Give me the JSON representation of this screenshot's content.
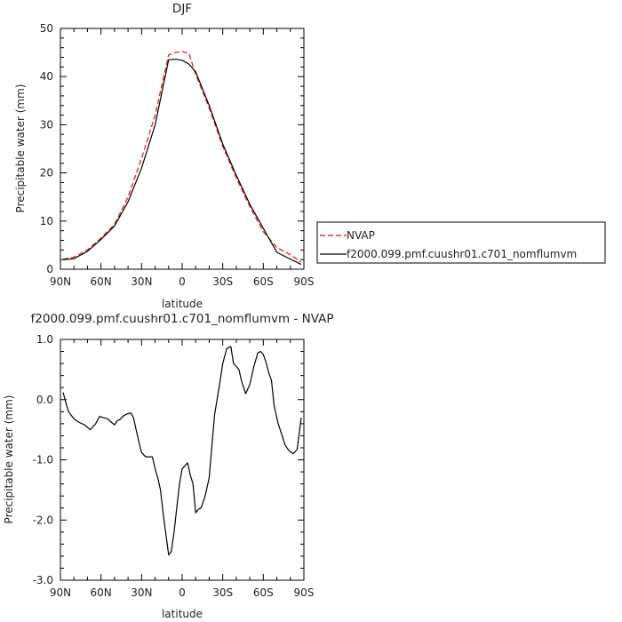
{
  "chart_data": [
    {
      "type": "line",
      "title": "DJF",
      "xlabel": "latitude",
      "ylabel": "Precipitable water (mm)",
      "ylim": [
        0,
        50
      ],
      "yticks": [
        0,
        10,
        20,
        30,
        40,
        50
      ],
      "xlim": [
        90,
        -90
      ],
      "xticks": [
        {
          "value": 90,
          "label": "90N"
        },
        {
          "value": 60,
          "label": "60N"
        },
        {
          "value": 30,
          "label": "30N"
        },
        {
          "value": 0,
          "label": "0"
        },
        {
          "value": -30,
          "label": "30S"
        },
        {
          "value": -60,
          "label": "60S"
        },
        {
          "value": -90,
          "label": "90S"
        }
      ],
      "legend_position": "right",
      "series": [
        {
          "name": "NVAP",
          "color": "#e03030",
          "dash": true,
          "x": [
            88,
            80,
            70,
            60,
            50,
            40,
            30,
            20,
            10,
            5,
            0,
            -5,
            -10,
            -20,
            -30,
            -40,
            -50,
            -60,
            -70,
            -80,
            -88
          ],
          "y": [
            2.1,
            2.5,
            4.0,
            6.5,
            9.3,
            15.0,
            23.0,
            32.0,
            44.5,
            45.0,
            45.2,
            44.8,
            40.5,
            33.5,
            25.5,
            19.0,
            13.0,
            7.8,
            4.5,
            3.0,
            1.5
          ]
        },
        {
          "name": "f2000.099.pmf.cuushr01.c701_nomflumvm",
          "color": "#000000",
          "dash": false,
          "x": [
            88,
            80,
            70,
            60,
            50,
            40,
            30,
            20,
            10,
            5,
            0,
            -5,
            -10,
            -20,
            -30,
            -40,
            -50,
            -60,
            -70,
            -80,
            -88
          ],
          "y": [
            2.0,
            2.2,
            3.7,
            6.2,
            9.0,
            14.0,
            21.0,
            30.0,
            43.5,
            43.6,
            43.4,
            42.6,
            41.0,
            34.0,
            26.0,
            19.5,
            13.5,
            8.5,
            3.5,
            2.1,
            1.0
          ]
        }
      ]
    },
    {
      "type": "line",
      "title": "f2000.099.pmf.cuushr01.c701_nomflumvm - NVAP",
      "xlabel": "latitude",
      "ylabel": "Precipitable water (mm)",
      "ylim": [
        -3.0,
        1.0
      ],
      "yticks": [
        {
          "value": 1.0,
          "label": "1.0"
        },
        {
          "value": 0.0,
          "label": "0.0"
        },
        {
          "value": -1.0,
          "label": "-1.0"
        },
        {
          "value": -2.0,
          "label": "-2.0"
        },
        {
          "value": -3.0,
          "label": "-3.0"
        }
      ],
      "xlim": [
        90,
        -90
      ],
      "xticks": [
        {
          "value": 90,
          "label": "90N"
        },
        {
          "value": 60,
          "label": "60N"
        },
        {
          "value": 30,
          "label": "30N"
        },
        {
          "value": 0,
          "label": "0"
        },
        {
          "value": -30,
          "label": "30S"
        },
        {
          "value": -60,
          "label": "60S"
        },
        {
          "value": -90,
          "label": "90S"
        }
      ],
      "series": [
        {
          "color": "#000000",
          "x": [
            88,
            86,
            84,
            80,
            76,
            72,
            68,
            64,
            61,
            58,
            55,
            52,
            50,
            48,
            46,
            44,
            41,
            38,
            36,
            34,
            32,
            30,
            27,
            24,
            22,
            20,
            18,
            16,
            14,
            10,
            8,
            6,
            4,
            2,
            0,
            -2,
            -4,
            -6,
            -8,
            -10,
            -12,
            -14,
            -17,
            -20,
            -24,
            -28,
            -30,
            -33,
            -36,
            -38,
            -40,
            -42,
            -44,
            -47,
            -50,
            -53,
            -56,
            -58,
            -60,
            -62,
            -64,
            -66,
            -68,
            -71,
            -74,
            -76,
            -79,
            -82,
            -85,
            -88
          ],
          "y": [
            0.12,
            -0.05,
            -0.2,
            -0.32,
            -0.38,
            -0.42,
            -0.5,
            -0.4,
            -0.28,
            -0.3,
            -0.32,
            -0.38,
            -0.42,
            -0.35,
            -0.33,
            -0.28,
            -0.24,
            -0.22,
            -0.3,
            -0.5,
            -0.7,
            -0.88,
            -0.95,
            -0.95,
            -0.95,
            -1.15,
            -1.3,
            -1.5,
            -1.9,
            -2.58,
            -2.52,
            -2.2,
            -1.8,
            -1.4,
            -1.15,
            -1.1,
            -1.05,
            -1.25,
            -1.4,
            -1.88,
            -1.82,
            -1.8,
            -1.6,
            -1.3,
            -0.25,
            0.3,
            0.6,
            0.85,
            0.88,
            0.6,
            0.55,
            0.5,
            0.3,
            0.1,
            0.25,
            0.55,
            0.78,
            0.8,
            0.75,
            0.62,
            0.45,
            0.32,
            -0.1,
            -0.4,
            -0.6,
            -0.75,
            -0.85,
            -0.9,
            -0.83,
            -0.3
          ]
        }
      ]
    }
  ]
}
